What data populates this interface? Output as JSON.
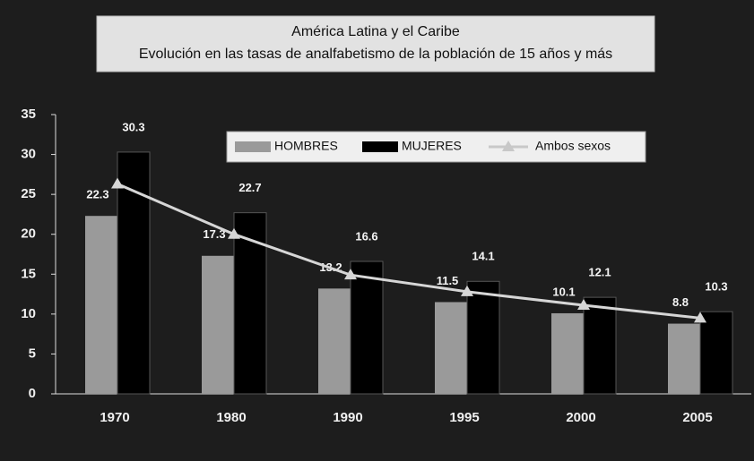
{
  "chart_data": {
    "type": "bar",
    "title": "América Latina y el Caribe",
    "subtitle": "Evolución en las tasas de analfabetismo de la población de 15 años y más",
    "categories": [
      "1970",
      "1980",
      "1990",
      "1995",
      "2000",
      "2005"
    ],
    "series": [
      {
        "name": "HOMBRES",
        "color": "#9a9a9a",
        "values": [
          22.3,
          17.3,
          13.2,
          11.5,
          10.1,
          8.8
        ]
      },
      {
        "name": "MUJERES",
        "color": "#000000",
        "values": [
          30.3,
          22.7,
          16.6,
          14.1,
          12.1,
          10.3
        ]
      },
      {
        "name": "Ambos sexos",
        "color": "#d6d6d6",
        "type": "line",
        "values": [
          26.3,
          20.0,
          14.9,
          12.8,
          11.1,
          9.5
        ]
      }
    ],
    "ylim": [
      0,
      35
    ],
    "yticks": [
      0,
      5,
      10,
      15,
      20,
      25,
      30,
      35
    ]
  }
}
